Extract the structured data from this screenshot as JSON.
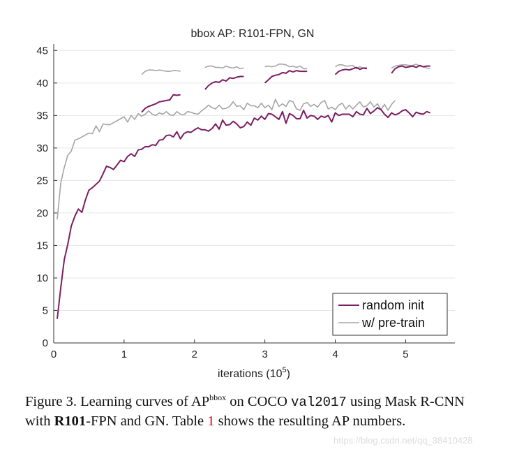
{
  "chart_data": {
    "type": "line",
    "title": "bbox AP: R101-FPN, GN",
    "xlabel": "iterations (10",
    "xlabel_sup": "5",
    "xlabel_end": ")",
    "ylabel": "",
    "xlim": [
      0,
      5.7
    ],
    "ylim": [
      0,
      46
    ],
    "xticks": [
      0,
      1,
      2,
      3,
      4,
      5
    ],
    "xtick_labels": [
      "0",
      "1",
      "2",
      "3",
      "4",
      "5"
    ],
    "yticks": [
      0,
      5,
      10,
      15,
      20,
      25,
      30,
      35,
      40,
      45
    ],
    "ytick_labels": [
      "0",
      "5",
      "10",
      "15",
      "20",
      "25",
      "30",
      "35",
      "40",
      "45"
    ],
    "grid": "horizontal",
    "legend_position": "bottom-right",
    "series": [
      {
        "name": "random init",
        "color": "#7b1e62",
        "segments": [
          {
            "x": [
              0.05,
              0.1,
              0.15,
              0.2,
              0.25,
              0.3,
              0.35,
              0.4,
              0.45,
              0.5,
              0.55,
              0.6,
              0.65,
              0.7,
              0.75,
              0.8,
              0.85,
              0.9,
              0.95,
              1.0,
              1.05,
              1.1,
              1.15,
              1.2,
              1.25,
              1.3,
              1.35,
              1.4,
              1.45,
              1.5,
              1.55,
              1.6,
              1.65,
              1.7,
              1.75,
              1.8,
              1.85,
              1.9,
              1.95,
              2.0,
              2.05,
              2.1,
              2.15,
              2.2,
              2.25,
              2.3,
              2.35,
              2.4,
              2.45,
              2.5,
              2.55,
              2.6,
              2.65,
              2.7,
              2.75,
              2.8,
              2.85,
              2.9,
              2.95,
              3.0,
              3.05,
              3.1,
              3.15,
              3.2,
              3.25,
              3.3,
              3.35,
              3.4,
              3.45,
              3.5,
              3.55,
              3.6,
              3.65,
              3.7,
              3.75,
              3.8,
              3.85,
              3.9,
              3.95,
              4.0,
              4.05,
              4.1,
              4.15,
              4.2,
              4.25,
              4.3,
              4.35,
              4.4,
              4.45,
              4.5,
              4.55,
              4.6,
              4.65,
              4.7,
              4.75,
              4.8,
              4.85,
              4.9,
              4.95,
              5.0,
              5.05,
              5.1,
              5.15,
              5.2,
              5.25,
              5.3,
              5.35
            ],
            "y": [
              3.7,
              8.5,
              12.8,
              15.2,
              18.0,
              19.5,
              20.6,
              20.1,
              22.0,
              23.5,
              23.9,
              24.4,
              24.9,
              26.0,
              27.2,
              27.0,
              26.7,
              27.4,
              28.1,
              27.9,
              28.7,
              29.1,
              28.7,
              29.7,
              29.8,
              30.2,
              30.2,
              30.5,
              30.4,
              31.2,
              31.3,
              31.9,
              32.0,
              31.7,
              32.5,
              31.4,
              32.2,
              32.5,
              32.4,
              32.8,
              33.1,
              32.8,
              32.8,
              32.6,
              33.0,
              33.7,
              32.9,
              34.3,
              33.5,
              33.6,
              34.1,
              33.7,
              33.1,
              33.3,
              34.0,
              33.5,
              34.6,
              34.3,
              34.9,
              34.4,
              35.3,
              35.2,
              34.8,
              34.4,
              35.6,
              33.8,
              35.3,
              35.0,
              34.5,
              34.5,
              35.8,
              34.6,
              35.0,
              34.9,
              34.4,
              34.9,
              34.7,
              35.0,
              34.0,
              35.4,
              35.0,
              35.2,
              35.2,
              35.2,
              34.8,
              35.6,
              35.2,
              35.1,
              36.1,
              35.3,
              35.7,
              36.2,
              35.9,
              35.2,
              34.7,
              35.4,
              35.1,
              35.3,
              35.7,
              35.9,
              35.4,
              34.8,
              35.5,
              35.3,
              35.2,
              35.6,
              35.4
            ]
          },
          {
            "x": [
              1.25,
              1.3,
              1.35,
              1.4,
              1.45,
              1.5,
              1.55,
              1.6,
              1.65,
              1.7,
              1.75,
              1.8
            ],
            "y": [
              35.5,
              36.1,
              36.4,
              36.6,
              36.8,
              37.1,
              37.2,
              37.3,
              37.4,
              38.2,
              38.1,
              38.2
            ]
          },
          {
            "x": [
              2.15,
              2.2,
              2.25,
              2.3,
              2.35,
              2.4,
              2.45,
              2.5,
              2.55,
              2.6,
              2.65,
              2.7
            ],
            "y": [
              39.0,
              39.6,
              40.0,
              40.2,
              40.1,
              40.5,
              40.3,
              40.8,
              40.7,
              40.9,
              41.0,
              41.0
            ]
          },
          {
            "x": [
              3.0,
              3.05,
              3.1,
              3.15,
              3.2,
              3.25,
              3.3,
              3.35,
              3.4,
              3.45,
              3.5,
              3.55,
              3.6
            ],
            "y": [
              40.0,
              40.5,
              41.0,
              41.2,
              41.3,
              41.6,
              41.5,
              41.9,
              41.7,
              41.9,
              41.8,
              41.8,
              41.8
            ]
          },
          {
            "x": [
              4.0,
              4.05,
              4.1,
              4.15,
              4.2,
              4.25,
              4.3,
              4.35,
              4.4,
              4.45
            ],
            "y": [
              41.3,
              41.8,
              42.0,
              42.1,
              42.0,
              42.2,
              42.4,
              42.1,
              42.3,
              42.2
            ]
          },
          {
            "x": [
              4.8,
              4.85,
              4.9,
              4.95,
              5.0,
              5.05,
              5.1,
              5.15,
              5.2,
              5.25,
              5.3,
              5.35
            ],
            "y": [
              41.5,
              42.2,
              42.5,
              42.6,
              42.4,
              42.5,
              42.6,
              42.4,
              42.7,
              42.5,
              42.6,
              42.6
            ]
          }
        ]
      },
      {
        "name": "w/ pre-train",
        "color": "#a5a5a5",
        "segments": [
          {
            "x": [
              0.05,
              0.1,
              0.15,
              0.2,
              0.25,
              0.3,
              0.35,
              0.4,
              0.45,
              0.5,
              0.55,
              0.6,
              0.65,
              0.7,
              0.75,
              0.8,
              0.85,
              0.9,
              0.95,
              1.0,
              1.05,
              1.1,
              1.15,
              1.2,
              1.25,
              1.3,
              1.35,
              1.4,
              1.45,
              1.5,
              1.55,
              1.6,
              1.65,
              1.7,
              1.75,
              1.8,
              1.85,
              1.9,
              1.95,
              2.0,
              2.05,
              2.1,
              2.15,
              2.2,
              2.25,
              2.3,
              2.35,
              2.4,
              2.45,
              2.5,
              2.55,
              2.6,
              2.65,
              2.7,
              2.75,
              2.8,
              2.85,
              2.9,
              2.95,
              3.0,
              3.05,
              3.1,
              3.15,
              3.2,
              3.25,
              3.3,
              3.35,
              3.4,
              3.45,
              3.5,
              3.55,
              3.6,
              3.65,
              3.7,
              3.75,
              3.8,
              3.85,
              3.9,
              3.95,
              4.0,
              4.05,
              4.1,
              4.15,
              4.2,
              4.25,
              4.3,
              4.35,
              4.4,
              4.45,
              4.5,
              4.55,
              4.6,
              4.65,
              4.7,
              4.75,
              4.8,
              4.85
            ],
            "y": [
              19.0,
              24.6,
              27.0,
              28.9,
              29.5,
              31.2,
              31.4,
              31.7,
              32.0,
              32.3,
              32.2,
              33.4,
              32.5,
              33.7,
              33.6,
              33.6,
              33.9,
              34.2,
              34.5,
              34.8,
              34.0,
              35.0,
              34.4,
              35.3,
              34.9,
              35.2,
              35.7,
              35.2,
              35.0,
              35.4,
              35.2,
              35.6,
              35.1,
              35.0,
              35.6,
              35.2,
              35.1,
              35.6,
              35.5,
              35.3,
              35.2,
              35.7,
              36.1,
              36.6,
              36.2,
              36.0,
              36.6,
              36.0,
              36.1,
              36.4,
              37.1,
              36.4,
              36.5,
              35.9,
              36.9,
              36.5,
              36.5,
              36.2,
              36.9,
              36.2,
              36.6,
              35.9,
              37.5,
              36.4,
              36.8,
              36.4,
              37.3,
              37.1,
              36.0,
              35.8,
              36.8,
              37.0,
              36.4,
              36.7,
              36.3,
              37.0,
              37.3,
              36.0,
              36.3,
              35.9,
              36.6,
              36.9,
              36.0,
              36.6,
              36.0,
              36.6,
              37.1,
              36.3,
              36.5,
              37.1,
              36.3,
              36.8,
              35.9,
              36.7,
              35.8,
              36.7,
              37.3
            ]
          },
          {
            "x": [
              1.25,
              1.3,
              1.35,
              1.4,
              1.45,
              1.5,
              1.55,
              1.6,
              1.65,
              1.7,
              1.75,
              1.8
            ],
            "y": [
              41.3,
              41.8,
              42.0,
              42.0,
              41.9,
              42.0,
              41.9,
              41.8,
              41.8,
              41.9,
              41.9,
              41.8
            ]
          },
          {
            "x": [
              2.15,
              2.2,
              2.25,
              2.3,
              2.35,
              2.4,
              2.45,
              2.5,
              2.55,
              2.6,
              2.65,
              2.7
            ],
            "y": [
              42.4,
              42.6,
              42.6,
              42.4,
              42.4,
              42.3,
              42.6,
              42.4,
              42.3,
              42.5,
              42.2,
              42.3
            ]
          },
          {
            "x": [
              3.0,
              3.05,
              3.1,
              3.15,
              3.2,
              3.25,
              3.3,
              3.35,
              3.4,
              3.45,
              3.5,
              3.55,
              3.6
            ],
            "y": [
              42.5,
              42.6,
              42.5,
              42.6,
              42.9,
              42.9,
              42.8,
              42.5,
              42.6,
              42.4,
              42.6,
              42.2,
              42.2
            ]
          },
          {
            "x": [
              4.0,
              4.05,
              4.1,
              4.15,
              4.2,
              4.25,
              4.3,
              4.35,
              4.4,
              4.45
            ],
            "y": [
              42.5,
              42.8,
              42.8,
              42.6,
              42.6,
              42.7,
              42.2,
              42.5,
              42.3,
              42.4
            ]
          },
          {
            "x": [
              4.8,
              4.85,
              4.9,
              4.95,
              5.0,
              5.05,
              5.1,
              5.15,
              5.2,
              5.25,
              5.3,
              5.35
            ],
            "y": [
              42.3,
              42.6,
              42.7,
              42.8,
              42.8,
              42.7,
              42.7,
              42.9,
              42.6,
              42.5,
              42.3,
              42.2
            ]
          }
        ]
      }
    ]
  },
  "caption": {
    "prefix": "Figure 3. Learning curves of AP",
    "sup": "bbox",
    "mid1": " on COCO ",
    "code": "val2017",
    "mid2": " using Mask R-CNN with ",
    "bold": "R101",
    "mid3": "-FPN and GN. Table ",
    "ref": "1",
    "suffix": " shows the resulting AP numbers."
  },
  "watermark": "https://blog.csdn.net/qq_38410428"
}
